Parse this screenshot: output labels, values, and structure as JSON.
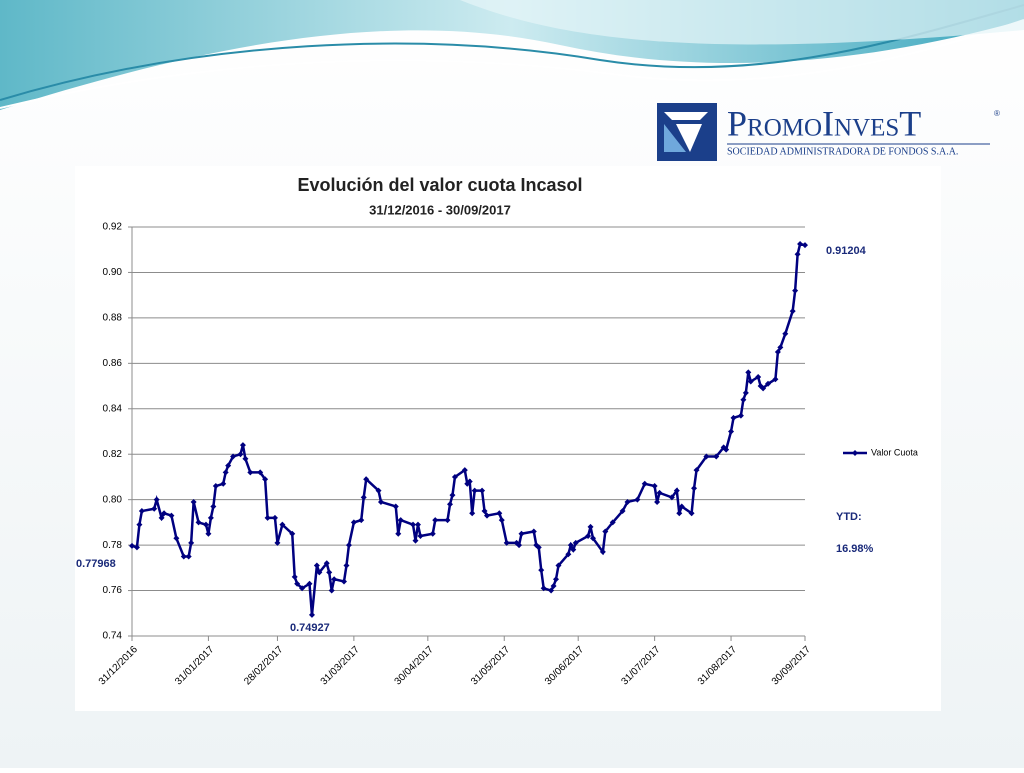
{
  "logo": {
    "name": "PromoInvesT",
    "mark": "®",
    "tagline": "SOCIEDAD ADMINISTRADORA DE FONDOS S.A.A."
  },
  "chart_data": {
    "type": "line",
    "title": "Evolución del valor cuota Incasol",
    "subtitle": "31/12/2016 - 30/09/2017",
    "x": [
      "31/12/2016",
      "02/01/2017",
      "03/01/2017",
      "04/01/2017",
      "09/01/2017",
      "10/01/2017",
      "12/01/2017",
      "13/01/2017",
      "16/01/2017",
      "18/01/2017",
      "21/01/2017",
      "23/01/2017",
      "24/01/2017",
      "25/01/2017",
      "27/01/2017",
      "30/01/2017",
      "31/01/2017",
      "01/02/2017",
      "02/02/2017",
      "03/02/2017",
      "06/02/2017",
      "07/02/2017",
      "08/02/2017",
      "10/02/2017",
      "13/02/2017",
      "14/02/2017",
      "15/02/2017",
      "17/02/2017",
      "21/02/2017",
      "23/02/2017",
      "24/02/2017",
      "27/02/2017",
      "28/02/2017",
      "02/03/2017",
      "06/03/2017",
      "07/03/2017",
      "08/03/2017",
      "10/03/2017",
      "13/03/2017",
      "14/03/2017",
      "16/03/2017",
      "17/03/2017",
      "20/03/2017",
      "21/03/2017",
      "22/03/2017",
      "23/03/2017",
      "27/03/2017",
      "28/03/2017",
      "29/03/2017",
      "31/03/2017",
      "03/04/2017",
      "04/04/2017",
      "05/04/2017",
      "10/04/2017",
      "11/04/2017",
      "17/04/2017",
      "18/04/2017",
      "19/04/2017",
      "24/04/2017",
      "25/04/2017",
      "26/04/2017",
      "27/04/2017",
      "02/05/2017",
      "03/05/2017",
      "08/05/2017",
      "09/05/2017",
      "10/05/2017",
      "11/05/2017",
      "15/05/2017",
      "16/05/2017",
      "17/05/2017",
      "18/05/2017",
      "19/05/2017",
      "22/05/2017",
      "23/05/2017",
      "24/05/2017",
      "29/05/2017",
      "30/05/2017",
      "01/06/2017",
      "05/06/2017",
      "06/06/2017",
      "07/06/2017",
      "12/06/2017",
      "13/06/2017",
      "14/06/2017",
      "15/06/2017",
      "16/06/2017",
      "19/06/2017",
      "20/06/2017",
      "21/06/2017",
      "22/06/2017",
      "26/06/2017",
      "27/06/2017",
      "28/06/2017",
      "29/06/2017",
      "04/07/2017",
      "05/07/2017",
      "06/07/2017",
      "10/07/2017",
      "11/07/2017",
      "14/07/2017",
      "18/07/2017",
      "20/07/2017",
      "24/07/2017",
      "27/07/2017",
      "31/07/2017",
      "01/08/2017",
      "02/08/2017",
      "07/08/2017",
      "09/08/2017",
      "10/08/2017",
      "11/08/2017",
      "15/08/2017",
      "16/08/2017",
      "17/08/2017",
      "21/08/2017",
      "25/08/2017",
      "28/08/2017",
      "29/08/2017",
      "31/08/2017",
      "01/09/2017",
      "04/09/2017",
      "05/09/2017",
      "06/09/2017",
      "07/09/2017",
      "08/09/2017",
      "11/09/2017",
      "12/09/2017",
      "13/09/2017",
      "15/09/2017",
      "18/09/2017",
      "19/09/2017",
      "20/09/2017",
      "22/09/2017",
      "25/09/2017",
      "26/09/2017",
      "27/09/2017",
      "28/09/2017",
      "30/09/2017"
    ],
    "series": [
      {
        "name": "Valor Cuota",
        "color": "#000080",
        "values": [
          0.77968,
          0.779,
          0.789,
          0.795,
          0.796,
          0.8,
          0.792,
          0.794,
          0.793,
          0.783,
          0.775,
          0.775,
          0.781,
          0.799,
          0.79,
          0.789,
          0.785,
          0.792,
          0.797,
          0.806,
          0.807,
          0.812,
          0.815,
          0.819,
          0.82,
          0.824,
          0.818,
          0.812,
          0.812,
          0.809,
          0.792,
          0.792,
          0.781,
          0.789,
          0.785,
          0.766,
          0.763,
          0.761,
          0.763,
          0.74927,
          0.771,
          0.768,
          0.772,
          0.768,
          0.76,
          0.765,
          0.764,
          0.771,
          0.78,
          0.79,
          0.791,
          0.801,
          0.809,
          0.804,
          0.799,
          0.797,
          0.785,
          0.791,
          0.789,
          0.782,
          0.789,
          0.784,
          0.785,
          0.791,
          0.791,
          0.798,
          0.802,
          0.81,
          0.813,
          0.807,
          0.808,
          0.794,
          0.804,
          0.804,
          0.795,
          0.793,
          0.794,
          0.791,
          0.781,
          0.781,
          0.78,
          0.785,
          0.786,
          0.78,
          0.779,
          0.769,
          0.761,
          0.76,
          0.762,
          0.765,
          0.771,
          0.776,
          0.78,
          0.778,
          0.781,
          0.784,
          0.788,
          0.783,
          0.777,
          0.786,
          0.79,
          0.795,
          0.799,
          0.8,
          0.807,
          0.806,
          0.799,
          0.803,
          0.801,
          0.804,
          0.794,
          0.797,
          0.794,
          0.805,
          0.813,
          0.819,
          0.819,
          0.823,
          0.822,
          0.83,
          0.836,
          0.837,
          0.844,
          0.847,
          0.856,
          0.852,
          0.854,
          0.85,
          0.849,
          0.851,
          0.853,
          0.865,
          0.867,
          0.873,
          0.883,
          0.892,
          0.908,
          0.9125,
          0.91204
        ]
      }
    ],
    "xlim": [
      "31/12/2016",
      "30/09/2017"
    ],
    "xticks": [
      "31/12/2016",
      "31/01/2017",
      "28/02/2017",
      "31/03/2017",
      "30/04/2017",
      "31/05/2017",
      "30/06/2017",
      "31/07/2017",
      "31/08/2017",
      "30/09/2017"
    ],
    "ylim": [
      0.74,
      0.92
    ],
    "yticks": [
      0.74,
      0.76,
      0.78,
      {
        "value": 0.8,
        "label": "0.80"
      },
      0.82,
      0.84,
      0.86,
      0.88,
      {
        "value": 0.9,
        "label": "0.90"
      },
      0.92
    ],
    "grid": true,
    "legend": "right",
    "annotations": [
      "0.91204",
      "0.74927",
      "0.77968",
      "YTD:",
      "16.98%"
    ]
  }
}
